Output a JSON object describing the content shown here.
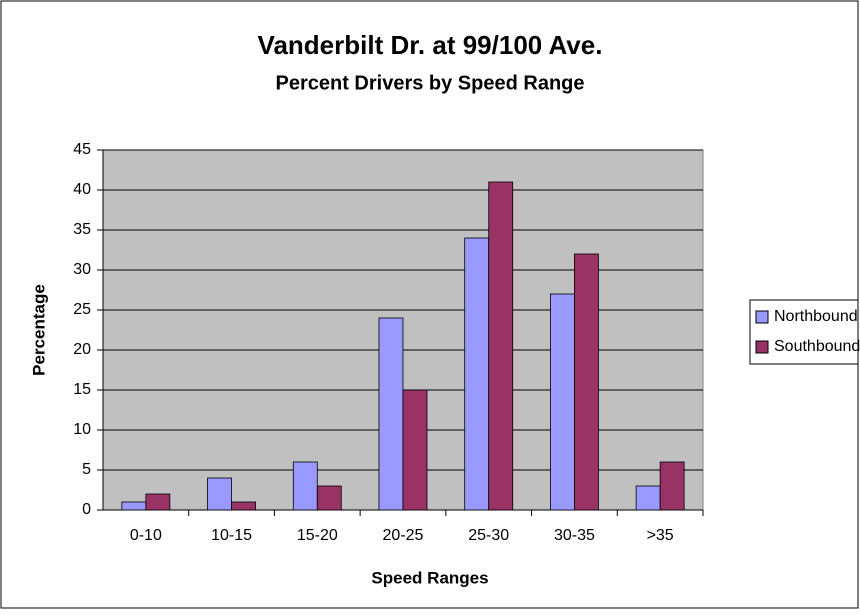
{
  "chart_data": {
    "type": "bar",
    "title": "Vanderbilt Dr. at 99/100 Ave.",
    "subtitle": "Percent Drivers by Speed Range",
    "x_label": "Speed Ranges",
    "y_label": "Percentage",
    "categories": [
      "0-10",
      "10-15",
      "15-20",
      "20-25",
      "25-30",
      "30-35",
      ">35"
    ],
    "series": [
      {
        "name": "Northbound",
        "color": "#9999ff",
        "values": [
          1,
          4,
          6,
          24,
          34,
          27,
          3
        ]
      },
      {
        "name": "Southbound",
        "color": "#993366",
        "values": [
          2,
          1,
          3,
          15,
          41,
          32,
          6
        ]
      }
    ],
    "ylim": [
      0,
      45
    ],
    "yticks": [
      0,
      5,
      10,
      15,
      20,
      25,
      30,
      35,
      40,
      45
    ],
    "grid": true,
    "legend": "right",
    "plot_background": "#c0c0c0"
  }
}
